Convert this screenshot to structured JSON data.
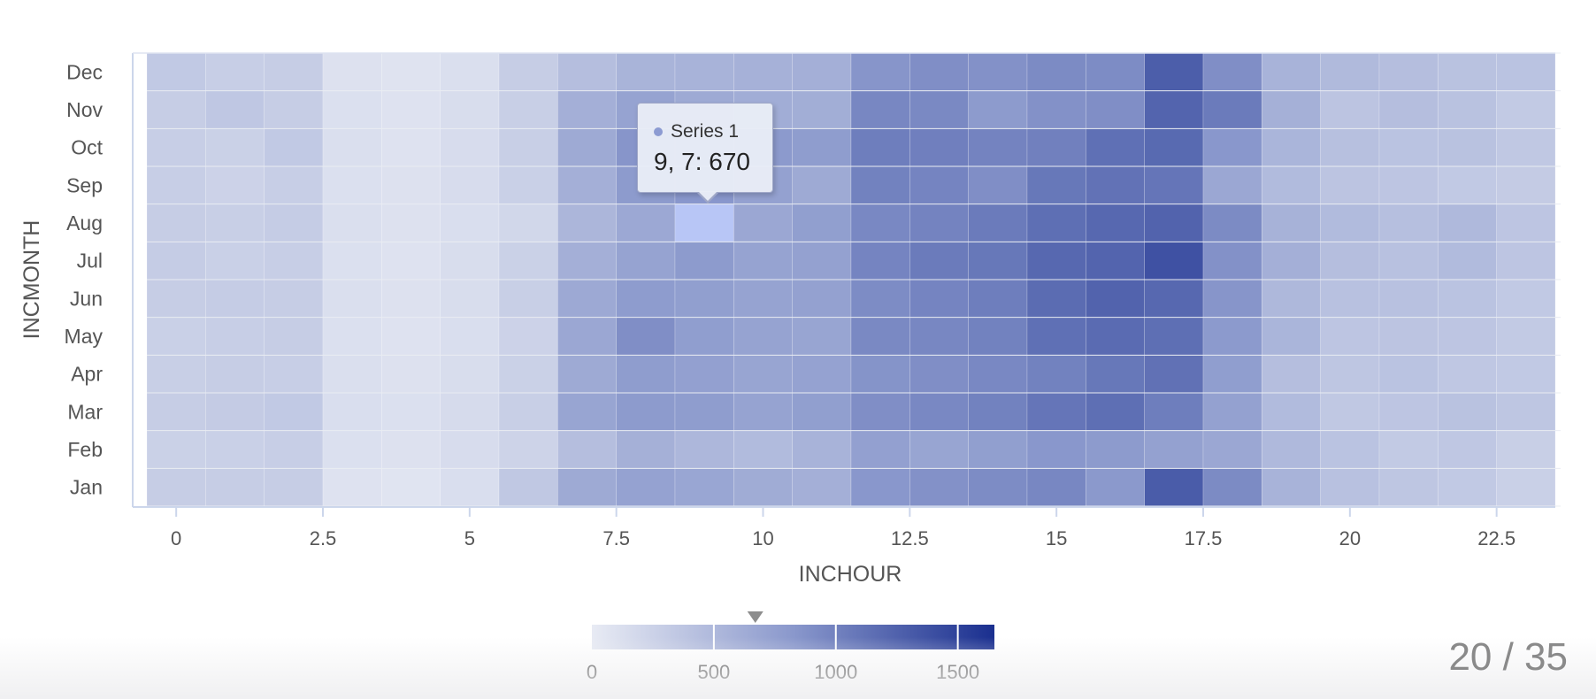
{
  "pager": "20 / 35",
  "tooltip": {
    "series": "Series 1",
    "text": "9, 7: 670"
  },
  "colors": {
    "low": "#e8ebf4",
    "high": "#1a2f8f",
    "axis": "#ccd6eb",
    "grid": "#e6e6e6",
    "text": "#555555"
  },
  "chart_data": {
    "type": "heatmap",
    "title": "",
    "xlabel": "INCHOUR",
    "ylabel": "INCMONTH",
    "x": [
      0,
      1,
      2,
      3,
      4,
      5,
      6,
      7,
      8,
      9,
      10,
      11,
      12,
      13,
      14,
      15,
      16,
      17,
      18,
      19,
      20,
      21,
      22,
      23
    ],
    "xlim": [
      -0.5,
      23.5
    ],
    "xticks": [
      0,
      2.5,
      5,
      7.5,
      10,
      12.5,
      15,
      17.5,
      20,
      22.5
    ],
    "categories": [
      "Jan",
      "Feb",
      "Mar",
      "Apr",
      "May",
      "Jun",
      "Jul",
      "Aug",
      "Sep",
      "Oct",
      "Nov",
      "Dec"
    ],
    "colorAxis": {
      "min": 0,
      "max": 1650,
      "ticks": [
        0,
        500,
        1000,
        1500
      ],
      "marker": 670
    },
    "grid": true,
    "highlight": {
      "x": 9,
      "y": 7
    },
    "values": [
      [
        300,
        300,
        300,
        90,
        70,
        130,
        350,
        650,
        730,
        690,
        630,
        600,
        830,
        880,
        920,
        960,
        820,
        1300,
        930,
        560,
        420,
        370,
        340,
        270
      ],
      [
        260,
        270,
        290,
        110,
        100,
        150,
        240,
        450,
        590,
        520,
        480,
        560,
        750,
        700,
        760,
        830,
        800,
        740,
        680,
        500,
        400,
        330,
        360,
        280
      ],
      [
        300,
        320,
        340,
        130,
        110,
        160,
        280,
        700,
        800,
        780,
        720,
        760,
        900,
        950,
        1000,
        1100,
        1150,
        1030,
        740,
        480,
        350,
        380,
        410,
        370
      ],
      [
        280,
        300,
        290,
        120,
        100,
        140,
        260,
        650,
        780,
        750,
        700,
        730,
        860,
        900,
        950,
        1000,
        1080,
        1130,
        770,
        450,
        370,
        400,
        360,
        340
      ],
      [
        270,
        290,
        300,
        110,
        90,
        130,
        250,
        680,
        900,
        770,
        720,
        700,
        940,
        960,
        1000,
        1140,
        1180,
        1150,
        810,
        540,
        380,
        390,
        380,
        330
      ],
      [
        300,
        310,
        300,
        120,
        100,
        140,
        280,
        660,
        790,
        760,
        720,
        740,
        920,
        980,
        1030,
        1170,
        1240,
        1200,
        850,
        510,
        420,
        420,
        400,
        340
      ],
      [
        310,
        270,
        290,
        110,
        90,
        140,
        260,
        600,
        720,
        800,
        720,
        740,
        980,
        1050,
        1080,
        1200,
        1230,
        1380,
        880,
        600,
        450,
        420,
        480,
        380
      ],
      [
        300,
        280,
        310,
        120,
        100,
        130,
        200,
        530,
        670,
        670,
        680,
        760,
        950,
        990,
        1050,
        1150,
        1200,
        1240,
        930,
        570,
        480,
        440,
        500,
        380
      ],
      [
        290,
        250,
        290,
        110,
        100,
        150,
        270,
        600,
        800,
        830,
        740,
        650,
        1000,
        980,
        900,
        1080,
        1120,
        1100,
        680,
        480,
        390,
        380,
        340,
        320
      ],
      [
        290,
        260,
        340,
        120,
        90,
        150,
        280,
        650,
        850,
        880,
        810,
        780,
        1030,
        1020,
        990,
        1010,
        1140,
        1190,
        830,
        540,
        430,
        400,
        410,
        350
      ],
      [
        300,
        360,
        300,
        110,
        90,
        140,
        280,
        600,
        720,
        650,
        620,
        610,
        960,
        940,
        800,
        880,
        900,
        1230,
        1050,
        590,
        390,
        450,
        410,
        330
      ],
      [
        340,
        290,
        300,
        100,
        80,
        120,
        300,
        450,
        550,
        560,
        580,
        600,
        850,
        900,
        880,
        930,
        920,
        1280,
        900,
        560,
        490,
        450,
        410,
        400
      ]
    ]
  }
}
